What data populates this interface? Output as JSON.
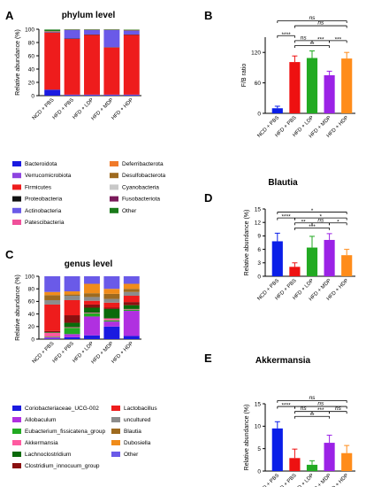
{
  "categories": [
    "NCD + PBS",
    "HFD + PBS",
    "HFD + LDP",
    "HFD + MDP",
    "HFD + HDP"
  ],
  "group_colors": [
    "#0a1ee8",
    "#ee1111",
    "#22aa22",
    "#9b22e6",
    "#ff8c1a"
  ],
  "chart_data": [
    {
      "panel": "A",
      "type": "bar",
      "stacked": true,
      "title": "phylum level",
      "ylabel": "Relative abundance (%)",
      "ylim": [
        0,
        100
      ],
      "yticks": [
        0,
        20,
        40,
        60,
        80,
        100
      ],
      "series": [
        {
          "name": "Bacteroidota",
          "color": "#1a1ae0",
          "values": [
            9,
            1,
            1,
            1,
            1
          ]
        },
        {
          "name": "Verrucomicrobiota",
          "color": "#8e44e0",
          "values": [
            0,
            0.5,
            0.5,
            0.5,
            0.5
          ]
        },
        {
          "name": "Firmicutes",
          "color": "#ee1c1c",
          "values": [
            86,
            84,
            90,
            71,
            90
          ]
        },
        {
          "name": "Proteobacteria",
          "color": "#111111",
          "values": [
            0.5,
            0.5,
            0.5,
            0.5,
            0.5
          ]
        },
        {
          "name": "Actinobacteria",
          "color": "#6a5ae8",
          "values": [
            0.5,
            13,
            7,
            26,
            6
          ]
        },
        {
          "name": "Patescibacteria",
          "color": "#f0509a",
          "values": [
            0.5,
            0,
            0,
            0,
            0
          ]
        },
        {
          "name": "Deferribacterota",
          "color": "#f07a2a",
          "values": [
            0,
            0,
            0,
            0,
            0
          ]
        },
        {
          "name": "Desulfobacterota",
          "color": "#9e6a1f",
          "values": [
            0.5,
            0.5,
            0.5,
            0.5,
            1
          ]
        },
        {
          "name": "Cyanobacteria",
          "color": "#c8c8c8",
          "values": [
            0,
            0,
            0,
            0,
            0
          ]
        },
        {
          "name": "Fusobacteriota",
          "color": "#7a1a5a",
          "values": [
            0,
            0,
            0,
            0,
            0
          ]
        },
        {
          "name": "Other",
          "color": "#1a7a1a",
          "values": [
            2.5,
            0.5,
            0.5,
            0.5,
            0.5
          ]
        }
      ]
    },
    {
      "panel": "B",
      "type": "bar",
      "title": "",
      "ylabel": "F/B ratio",
      "ylim": [
        0,
        150
      ],
      "yticks": [
        0,
        60,
        120
      ],
      "values": [
        10,
        101,
        109,
        75,
        108
      ],
      "errors": [
        4,
        12,
        14,
        8,
        12
      ],
      "significance": [
        {
          "from": 0,
          "to": 1,
          "label": "****",
          "level": 1
        },
        {
          "from": 1,
          "to": 2,
          "label": "ns",
          "level": 0.5
        },
        {
          "from": 2,
          "to": 3,
          "label": "***",
          "level": 0.5
        },
        {
          "from": 3,
          "to": 4,
          "label": "***",
          "level": 0.5
        },
        {
          "from": 1,
          "to": 3,
          "label": "**",
          "level": 0
        },
        {
          "from": 1,
          "to": 4,
          "label": "ns",
          "level": 2
        },
        {
          "from": 0,
          "to": 4,
          "label": "ns",
          "level": 2.5
        }
      ]
    },
    {
      "panel": "C",
      "type": "bar",
      "stacked": true,
      "title": "genus level",
      "ylabel": "Relative abundance (%)",
      "ylim": [
        0,
        100
      ],
      "yticks": [
        0,
        20,
        40,
        60,
        80,
        100
      ],
      "series": [
        {
          "name": "Coriobacteriaceae_UCG-002",
          "color": "#1a1ae0",
          "values": [
            1,
            3,
            6,
            20,
            5
          ]
        },
        {
          "name": "Allobaculum",
          "color": "#b030e0",
          "values": [
            2,
            5,
            30,
            8,
            40
          ]
        },
        {
          "name": "Eubacterium_fissicatena_group",
          "color": "#22aa22",
          "values": [
            1,
            10,
            5,
            2,
            2
          ]
        },
        {
          "name": "Akkermansia",
          "color": "#ff5aa0",
          "values": [
            6,
            1,
            1,
            3,
            1
          ]
        },
        {
          "name": "Lachnoclostridium",
          "color": "#0a6a0a",
          "values": [
            1,
            7,
            8,
            15,
            6
          ]
        },
        {
          "name": "Clostridium_innocuum_group",
          "color": "#8a1010",
          "values": [
            2,
            12,
            5,
            2,
            5
          ]
        },
        {
          "name": "Lactobacillus",
          "color": "#ee1c1c",
          "values": [
            42,
            24,
            6,
            8,
            10
          ]
        },
        {
          "name": "uncultured",
          "color": "#8c8c8c",
          "values": [
            7,
            7,
            6,
            6,
            6
          ]
        },
        {
          "name": "Blautia",
          "color": "#9e6a1f",
          "values": [
            8,
            2,
            6,
            8,
            5
          ]
        },
        {
          "name": "Dubosiella",
          "color": "#f08c1a",
          "values": [
            5,
            5,
            15,
            8,
            8
          ]
        },
        {
          "name": "Other",
          "color": "#6a5ae8",
          "values": [
            25,
            24,
            12,
            20,
            12
          ]
        }
      ]
    },
    {
      "panel": "D",
      "type": "bar",
      "title": "Blautia",
      "ylabel": "Relative abundance (%)",
      "ylim": [
        0,
        15
      ],
      "yticks": [
        0,
        3,
        6,
        9,
        12,
        15
      ],
      "values": [
        7.8,
        2.1,
        6.4,
        8.1,
        4.7
      ],
      "errors": [
        1.8,
        0.9,
        2.5,
        1.4,
        1.3
      ],
      "significance": [
        {
          "from": 0,
          "to": 1,
          "label": "****",
          "level": 1
        },
        {
          "from": 1,
          "to": 2,
          "label": "**",
          "level": 0.5
        },
        {
          "from": 2,
          "to": 3,
          "label": "ns",
          "level": 0.5
        },
        {
          "from": 3,
          "to": 4,
          "label": "*",
          "level": 0.5
        },
        {
          "from": 1,
          "to": 3,
          "label": "***",
          "level": 0
        },
        {
          "from": 1,
          "to": 4,
          "label": "*",
          "level": 1
        },
        {
          "from": 0,
          "to": 4,
          "label": "*",
          "level": 1.6
        }
      ]
    },
    {
      "panel": "E",
      "type": "bar",
      "title": "Akkermansia",
      "ylabel": "Relative abundance (%)",
      "ylim": [
        0,
        15
      ],
      "yticks": [
        0,
        5,
        10,
        15
      ],
      "values": [
        9.5,
        2.9,
        1.4,
        6.3,
        4.0
      ],
      "errors": [
        1.5,
        2.0,
        0.9,
        1.7,
        1.7
      ],
      "significance": [
        {
          "from": 0,
          "to": 1,
          "label": "****",
          "level": 1
        },
        {
          "from": 1,
          "to": 2,
          "label": "ns",
          "level": 0.5
        },
        {
          "from": 2,
          "to": 3,
          "label": "***",
          "level": 0.5
        },
        {
          "from": 3,
          "to": 4,
          "label": "ns",
          "level": 0.5
        },
        {
          "from": 1,
          "to": 3,
          "label": "**",
          "level": 0
        },
        {
          "from": 1,
          "to": 4,
          "label": "ns",
          "level": 1
        },
        {
          "from": 0,
          "to": 4,
          "label": "ns",
          "level": 1.6
        }
      ]
    }
  ]
}
